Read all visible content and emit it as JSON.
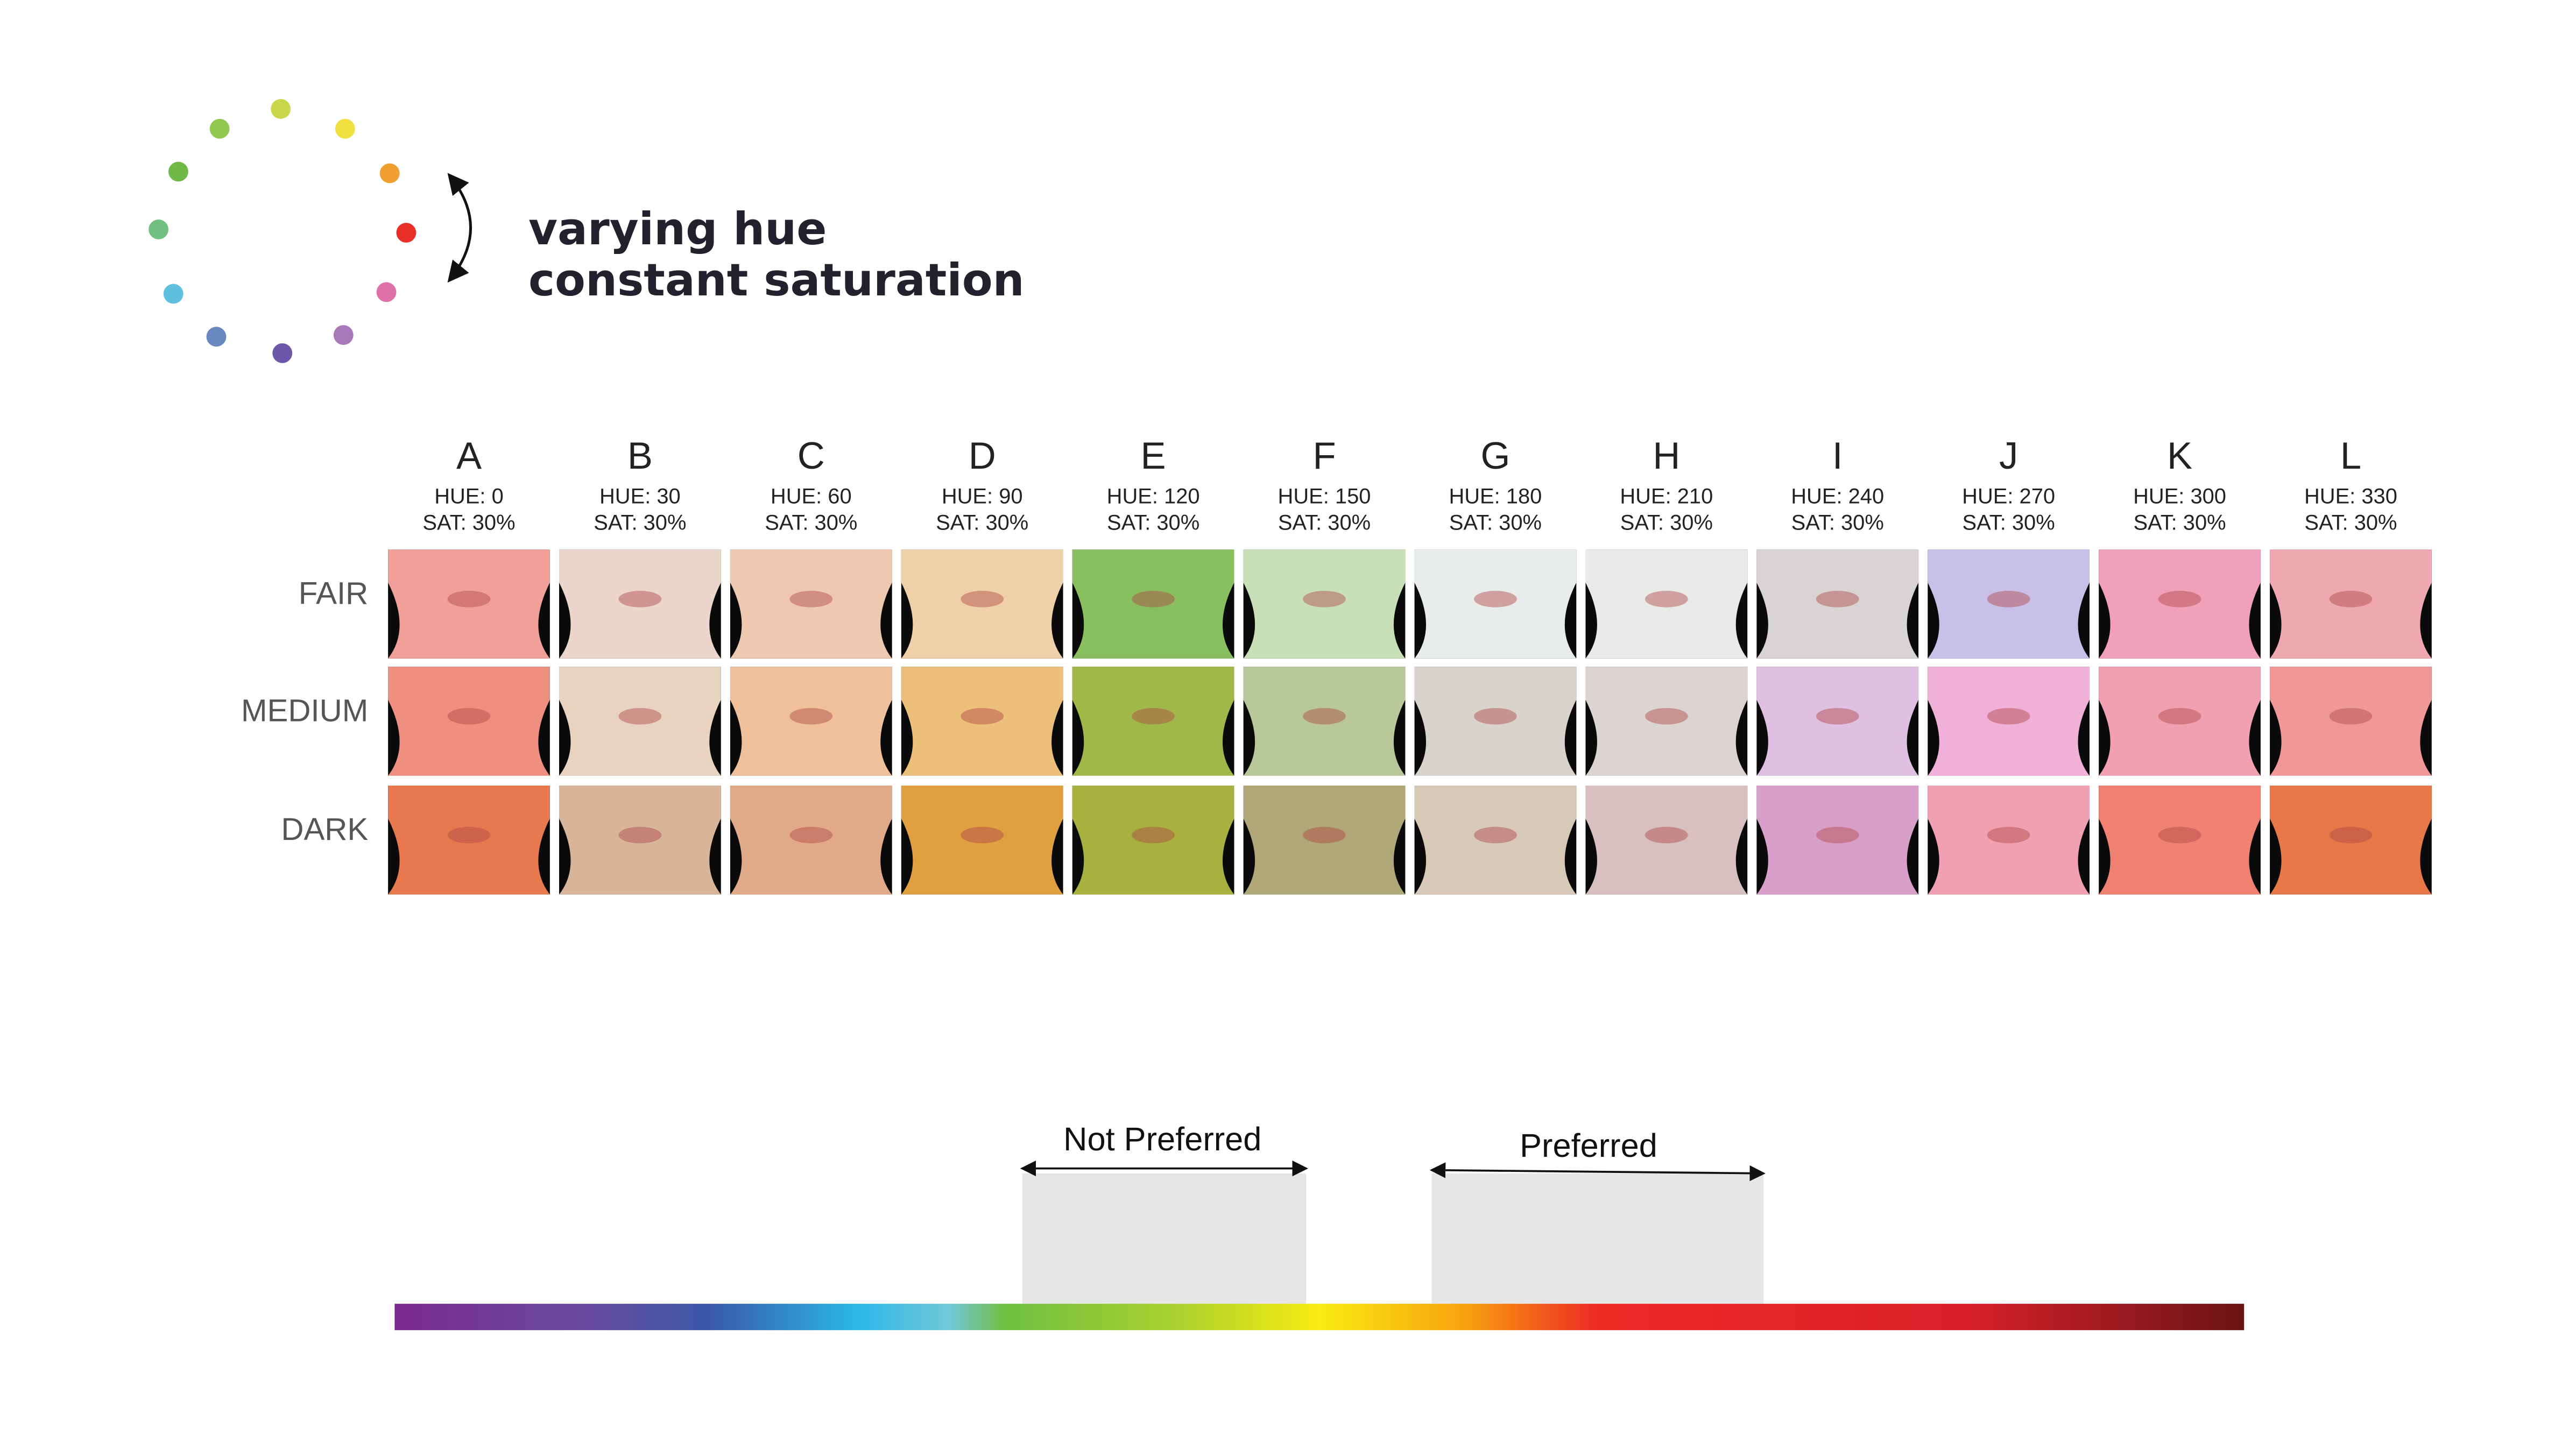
{
  "title": [
    "varying hue",
    "constant saturation"
  ],
  "columns": [
    {
      "letter": "A",
      "hue": "HUE: 0",
      "sat": "SAT: 30%"
    },
    {
      "letter": "B",
      "hue": "HUE: 30",
      "sat": "SAT: 30%"
    },
    {
      "letter": "C",
      "hue": "HUE: 60",
      "sat": "SAT: 30%"
    },
    {
      "letter": "D",
      "hue": "HUE: 90",
      "sat": "SAT: 30%"
    },
    {
      "letter": "E",
      "hue": "HUE: 120",
      "sat": "SAT: 30%"
    },
    {
      "letter": "F",
      "hue": "HUE: 150",
      "sat": "SAT: 30%"
    },
    {
      "letter": "G",
      "hue": "HUE: 180",
      "sat": "SAT: 30%"
    },
    {
      "letter": "H",
      "hue": "HUE: 210",
      "sat": "SAT: 30%"
    },
    {
      "letter": "I",
      "hue": "HUE: 240",
      "sat": "SAT: 30%"
    },
    {
      "letter": "J",
      "hue": "HUE: 270",
      "sat": "SAT: 30%"
    },
    {
      "letter": "K",
      "hue": "HUE: 300",
      "sat": "SAT: 30%"
    },
    {
      "letter": "L",
      "hue": "HUE: 330",
      "sat": "SAT: 30%"
    }
  ],
  "rows": [
    "FAIR",
    "MEDIUM",
    "DARK"
  ],
  "scale": {
    "not_preferred": "Not Preferred",
    "preferred": "Preferred"
  }
}
